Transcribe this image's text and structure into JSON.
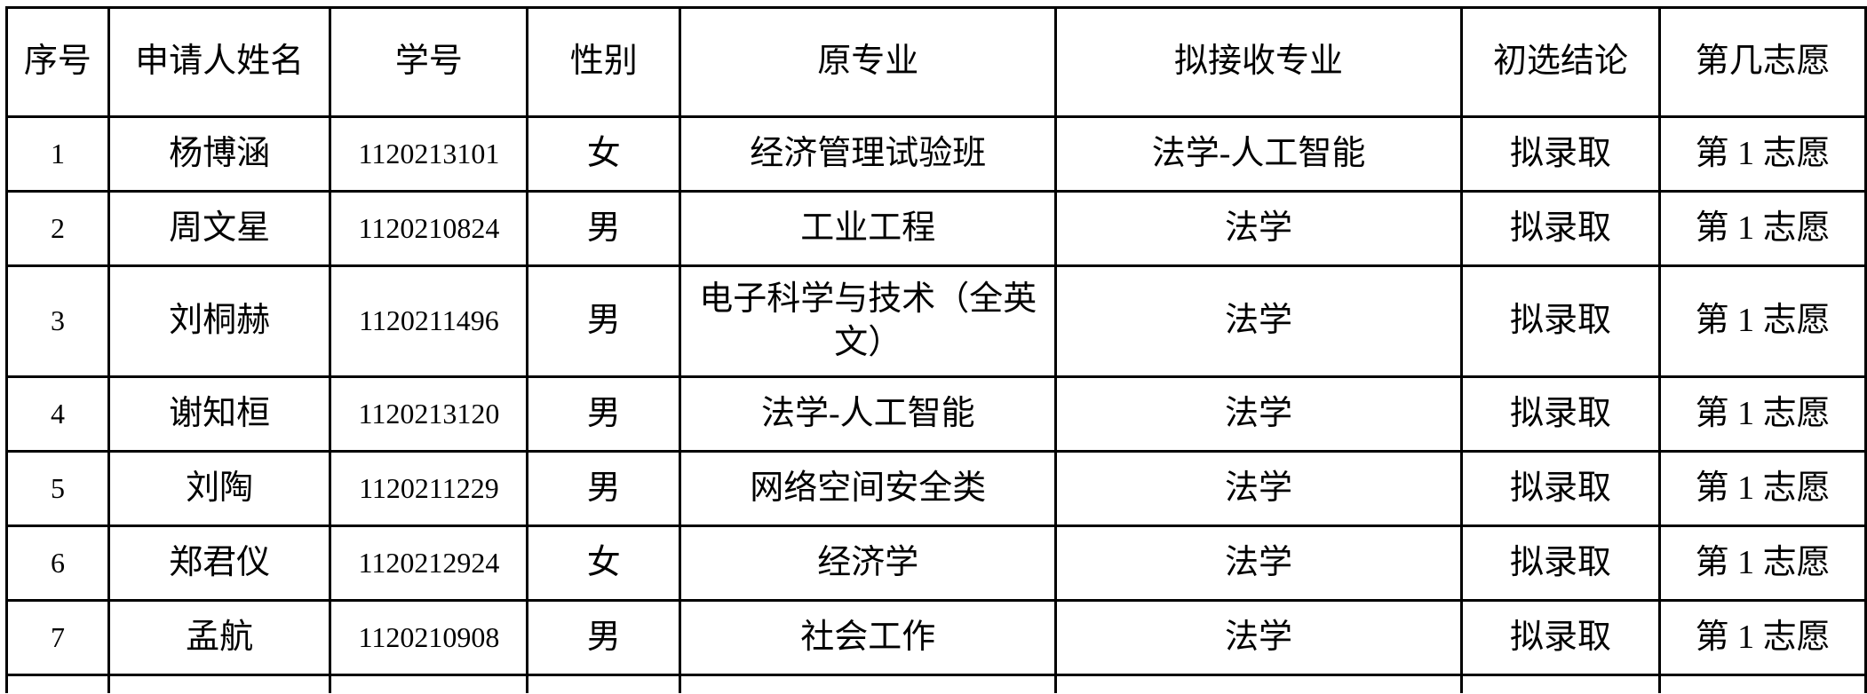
{
  "headers": [
    "序号",
    "申请人姓名",
    "学号",
    "性别",
    "原专业",
    "拟接收专业",
    "初选结论",
    "第几志愿"
  ],
  "rows": [
    [
      "1",
      "杨博涵",
      "1120213101",
      "女",
      "经济管理试验班",
      "法学-人工智能",
      "拟录取",
      "第 1 志愿"
    ],
    [
      "2",
      "周文星",
      "1120210824",
      "男",
      "工业工程",
      "法学",
      "拟录取",
      "第 1 志愿"
    ],
    [
      "3",
      "刘桐赫",
      "1120211496",
      "男",
      "电子科学与技术（全英文）",
      "法学",
      "拟录取",
      "第 1 志愿"
    ],
    [
      "4",
      "谢知桓",
      "1120213120",
      "男",
      "法学-人工智能",
      "法学",
      "拟录取",
      "第 1 志愿"
    ],
    [
      "5",
      "刘陶",
      "1120211229",
      "男",
      "网络空间安全类",
      "法学",
      "拟录取",
      "第 1 志愿"
    ],
    [
      "6",
      "郑君仪",
      "1120212924",
      "女",
      "经济学",
      "法学",
      "拟录取",
      "第 1 志愿"
    ],
    [
      "7",
      "孟航",
      "1120210908",
      "男",
      "社会工作",
      "法学",
      "拟录取",
      "第 1 志愿"
    ]
  ]
}
